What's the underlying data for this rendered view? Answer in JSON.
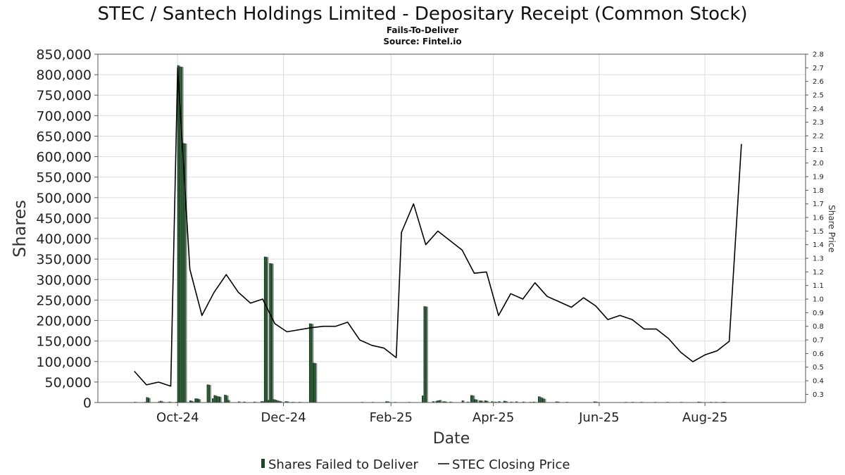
{
  "chart_data": {
    "type": "bar+line",
    "title": "STEC / Santech Holdings Limited - Depositary Receipt (Common Stock)",
    "subtitle_lines": [
      "Fails-To-Deliver",
      "Source: Fintel.io"
    ],
    "xlabel": "Date",
    "ylabel_left": "Shares",
    "ylabel_right": "Share Price",
    "x_range": [
      "2024-08-16",
      "2025-09-28"
    ],
    "x_ticks": [
      {
        "date": "2024-10-01",
        "label": "Oct-24"
      },
      {
        "date": "2024-12-01",
        "label": "Dec-24"
      },
      {
        "date": "2025-02-01",
        "label": "Feb-25"
      },
      {
        "date": "2025-04-01",
        "label": "Apr-25"
      },
      {
        "date": "2025-06-01",
        "label": "Jun-25"
      },
      {
        "date": "2025-08-01",
        "label": "Aug-25"
      }
    ],
    "y_left_range": [
      0,
      850000
    ],
    "y_left_ticks": [
      {
        "value": 0,
        "label": "0"
      },
      {
        "value": 50000,
        "label": "50,000"
      },
      {
        "value": 100000,
        "label": "100,000"
      },
      {
        "value": 150000,
        "label": "150,000"
      },
      {
        "value": 200000,
        "label": "200,000"
      },
      {
        "value": 250000,
        "label": "250,000"
      },
      {
        "value": 300000,
        "label": "300,000"
      },
      {
        "value": 350000,
        "label": "350,000"
      },
      {
        "value": 400000,
        "label": "400,000"
      },
      {
        "value": 450000,
        "label": "450,000"
      },
      {
        "value": 500000,
        "label": "500,000"
      },
      {
        "value": 550000,
        "label": "550,000"
      },
      {
        "value": 600000,
        "label": "600,000"
      },
      {
        "value": 650000,
        "label": "650,000"
      },
      {
        "value": 700000,
        "label": "700,000"
      },
      {
        "value": 750000,
        "label": "750,000"
      },
      {
        "value": 800000,
        "label": "800,000"
      },
      {
        "value": 850000,
        "label": "850,000"
      }
    ],
    "y_right_range": [
      0.24,
      2.8
    ],
    "y_right_ticks": [
      {
        "value": 0.3,
        "label": "0.3"
      },
      {
        "value": 0.4,
        "label": "0.4"
      },
      {
        "value": 0.5,
        "label": "0.5"
      },
      {
        "value": 0.6,
        "label": "0.6"
      },
      {
        "value": 0.7,
        "label": "0.7"
      },
      {
        "value": 0.8,
        "label": "0.8"
      },
      {
        "value": 0.9,
        "label": "0.9"
      },
      {
        "value": 1.0,
        "label": "1.0"
      },
      {
        "value": 1.1,
        "label": "1.1"
      },
      {
        "value": 1.2,
        "label": "1.2"
      },
      {
        "value": 1.3,
        "label": "1.3"
      },
      {
        "value": 1.4,
        "label": "1.4"
      },
      {
        "value": 1.5,
        "label": "1.5"
      },
      {
        "value": 1.6,
        "label": "1.6"
      },
      {
        "value": 1.7,
        "label": "1.7"
      },
      {
        "value": 1.8,
        "label": "1.8"
      },
      {
        "value": 1.9,
        "label": "1.9"
      },
      {
        "value": 2.0,
        "label": "2.0"
      },
      {
        "value": 2.1,
        "label": "2.1"
      },
      {
        "value": 2.2,
        "label": "2.2"
      },
      {
        "value": 2.3,
        "label": "2.3"
      },
      {
        "value": 2.4,
        "label": "2.4"
      },
      {
        "value": 2.5,
        "label": "2.5"
      },
      {
        "value": 2.6,
        "label": "2.6"
      },
      {
        "value": 2.7,
        "label": "2.7"
      },
      {
        "value": 2.8,
        "label": "2.8"
      }
    ],
    "grid": true,
    "legend_position": "bottom",
    "legend": [
      {
        "label": "Shares Failed to Deliver",
        "marker": "bar"
      },
      {
        "label": "STEC Closing Price",
        "marker": "line"
      }
    ],
    "colors": {
      "bar_dark": "#17471f",
      "bar_light": "#8c8c8c",
      "line": "#000000",
      "grid": "#dddddd",
      "axis": "#555555",
      "text": "#222222"
    },
    "series": [
      {
        "name": "Shares Failed to Deliver",
        "type": "bar",
        "axis": "left",
        "points": [
          {
            "date": "2024-09-06",
            "value": 1500
          },
          {
            "date": "2024-09-12",
            "value": 1200
          },
          {
            "date": "2024-09-13",
            "value": 13000
          },
          {
            "date": "2024-09-14",
            "value": 11000
          },
          {
            "date": "2024-09-20",
            "value": 2500
          },
          {
            "date": "2024-09-21",
            "value": 4000
          },
          {
            "date": "2024-09-22",
            "value": 2000
          },
          {
            "date": "2024-09-26",
            "value": 2000
          },
          {
            "date": "2024-09-30",
            "value": 1500
          },
          {
            "date": "2024-10-01",
            "value": 823000
          },
          {
            "date": "2024-10-02",
            "value": 820000
          },
          {
            "date": "2024-10-03",
            "value": 819000
          },
          {
            "date": "2024-10-04",
            "value": 633000
          },
          {
            "date": "2024-10-05",
            "value": 632000
          },
          {
            "date": "2024-10-08",
            "value": 5000
          },
          {
            "date": "2024-10-09",
            "value": 3500
          },
          {
            "date": "2024-10-11",
            "value": 10000
          },
          {
            "date": "2024-10-12",
            "value": 9500
          },
          {
            "date": "2024-10-13",
            "value": 8000
          },
          {
            "date": "2024-10-18",
            "value": 44000
          },
          {
            "date": "2024-10-19",
            "value": 43000
          },
          {
            "date": "2024-10-21",
            "value": 10000
          },
          {
            "date": "2024-10-22",
            "value": 18000
          },
          {
            "date": "2024-10-23",
            "value": 16000
          },
          {
            "date": "2024-10-24",
            "value": 15000
          },
          {
            "date": "2024-10-25",
            "value": 14000
          },
          {
            "date": "2024-10-28",
            "value": 19000
          },
          {
            "date": "2024-10-29",
            "value": 17000
          },
          {
            "date": "2024-10-30",
            "value": 6000
          },
          {
            "date": "2024-11-05",
            "value": 2500
          },
          {
            "date": "2024-11-08",
            "value": 2000
          },
          {
            "date": "2024-11-14",
            "value": 2000
          },
          {
            "date": "2024-11-18",
            "value": 3000
          },
          {
            "date": "2024-11-19",
            "value": 3000
          },
          {
            "date": "2024-11-20",
            "value": 356000
          },
          {
            "date": "2024-11-21",
            "value": 355000
          },
          {
            "date": "2024-11-22",
            "value": 6000
          },
          {
            "date": "2024-11-23",
            "value": 340000
          },
          {
            "date": "2024-11-24",
            "value": 339000
          },
          {
            "date": "2024-11-25",
            "value": 8000
          },
          {
            "date": "2024-11-26",
            "value": 7000
          },
          {
            "date": "2024-11-27",
            "value": 5000
          },
          {
            "date": "2024-11-28",
            "value": 4000
          },
          {
            "date": "2024-11-29",
            "value": 3000
          },
          {
            "date": "2024-12-02",
            "value": 3000
          },
          {
            "date": "2024-12-03",
            "value": 2500
          },
          {
            "date": "2024-12-06",
            "value": 1500
          },
          {
            "date": "2024-12-10",
            "value": 1500
          },
          {
            "date": "2024-12-16",
            "value": 193000
          },
          {
            "date": "2024-12-17",
            "value": 192000
          },
          {
            "date": "2024-12-18",
            "value": 97000
          },
          {
            "date": "2024-12-19",
            "value": 96000
          },
          {
            "date": "2025-01-15",
            "value": 1000
          },
          {
            "date": "2025-01-21",
            "value": 1000
          },
          {
            "date": "2025-01-29",
            "value": 3000
          },
          {
            "date": "2025-01-30",
            "value": 2500
          },
          {
            "date": "2025-02-03",
            "value": 1000
          },
          {
            "date": "2025-02-11",
            "value": 1000
          },
          {
            "date": "2025-02-19",
            "value": 17000
          },
          {
            "date": "2025-02-20",
            "value": 235000
          },
          {
            "date": "2025-02-21",
            "value": 234000
          },
          {
            "date": "2025-02-25",
            "value": 3000
          },
          {
            "date": "2025-02-27",
            "value": 4000
          },
          {
            "date": "2025-02-28",
            "value": 5000
          },
          {
            "date": "2025-03-01",
            "value": 6000
          },
          {
            "date": "2025-03-03",
            "value": 3000
          },
          {
            "date": "2025-03-04",
            "value": 2500
          },
          {
            "date": "2025-03-07",
            "value": 2000
          },
          {
            "date": "2025-03-14",
            "value": 5000
          },
          {
            "date": "2025-03-17",
            "value": 2000
          },
          {
            "date": "2025-03-19",
            "value": 18000
          },
          {
            "date": "2025-03-20",
            "value": 17000
          },
          {
            "date": "2025-03-21",
            "value": 8000
          },
          {
            "date": "2025-03-22",
            "value": 7000
          },
          {
            "date": "2025-03-24",
            "value": 5000
          },
          {
            "date": "2025-03-25",
            "value": 4000
          },
          {
            "date": "2025-03-27",
            "value": 5000
          },
          {
            "date": "2025-03-28",
            "value": 4000
          },
          {
            "date": "2025-03-31",
            "value": 3000
          },
          {
            "date": "2025-04-02",
            "value": 2000
          },
          {
            "date": "2025-04-04",
            "value": 3000
          },
          {
            "date": "2025-04-07",
            "value": 4000
          },
          {
            "date": "2025-04-08",
            "value": 3000
          },
          {
            "date": "2025-04-11",
            "value": 2000
          },
          {
            "date": "2025-04-14",
            "value": 2500
          },
          {
            "date": "2025-04-18",
            "value": 2000
          },
          {
            "date": "2025-04-22",
            "value": 1500
          },
          {
            "date": "2025-04-24",
            "value": 2000
          },
          {
            "date": "2025-04-27",
            "value": 15000
          },
          {
            "date": "2025-04-28",
            "value": 13000
          },
          {
            "date": "2025-04-29",
            "value": 11000
          },
          {
            "date": "2025-04-30",
            "value": 9000
          },
          {
            "date": "2025-05-07",
            "value": 2500
          },
          {
            "date": "2025-05-08",
            "value": 2000
          },
          {
            "date": "2025-05-13",
            "value": 1500
          },
          {
            "date": "2025-05-29",
            "value": 2500
          },
          {
            "date": "2025-05-30",
            "value": 2000
          },
          {
            "date": "2025-06-16",
            "value": 1000
          },
          {
            "date": "2025-06-20",
            "value": 1500
          },
          {
            "date": "2025-06-25",
            "value": 1500
          },
          {
            "date": "2025-07-03",
            "value": 1000
          },
          {
            "date": "2025-07-10",
            "value": 1000
          },
          {
            "date": "2025-07-18",
            "value": 1000
          },
          {
            "date": "2025-07-28",
            "value": 2000
          },
          {
            "date": "2025-07-29",
            "value": 1500
          },
          {
            "date": "2025-08-04",
            "value": 1000
          },
          {
            "date": "2025-08-07",
            "value": 1000
          },
          {
            "date": "2025-08-11",
            "value": 1500
          },
          {
            "date": "2025-08-12",
            "value": 1000
          }
        ]
      },
      {
        "name": "STEC Closing Price",
        "type": "line",
        "axis": "right",
        "points": [
          {
            "date": "2024-09-06",
            "value": 0.47
          },
          {
            "date": "2024-09-13",
            "value": 0.37
          },
          {
            "date": "2024-09-20",
            "value": 0.39
          },
          {
            "date": "2024-09-27",
            "value": 0.36
          },
          {
            "date": "2024-10-01",
            "value": 2.7
          },
          {
            "date": "2024-10-08",
            "value": 1.22
          },
          {
            "date": "2024-10-15",
            "value": 0.88
          },
          {
            "date": "2024-10-22",
            "value": 1.05
          },
          {
            "date": "2024-10-29",
            "value": 1.18
          },
          {
            "date": "2024-11-05",
            "value": 1.05
          },
          {
            "date": "2024-11-12",
            "value": 0.97
          },
          {
            "date": "2024-11-19",
            "value": 1.0
          },
          {
            "date": "2024-11-26",
            "value": 0.82
          },
          {
            "date": "2024-12-03",
            "value": 0.76
          },
          {
            "date": "2024-12-17",
            "value": 0.79
          },
          {
            "date": "2024-12-24",
            "value": 0.8
          },
          {
            "date": "2024-12-31",
            "value": 0.8
          },
          {
            "date": "2025-01-07",
            "value": 0.83
          },
          {
            "date": "2025-01-14",
            "value": 0.7
          },
          {
            "date": "2025-01-21",
            "value": 0.66
          },
          {
            "date": "2025-01-28",
            "value": 0.64
          },
          {
            "date": "2025-02-04",
            "value": 0.57
          },
          {
            "date": "2025-02-07",
            "value": 1.49
          },
          {
            "date": "2025-02-14",
            "value": 1.7
          },
          {
            "date": "2025-02-21",
            "value": 1.4
          },
          {
            "date": "2025-02-28",
            "value": 1.5
          },
          {
            "date": "2025-03-07",
            "value": 1.43
          },
          {
            "date": "2025-03-14",
            "value": 1.36
          },
          {
            "date": "2025-03-21",
            "value": 1.19
          },
          {
            "date": "2025-03-28",
            "value": 1.2
          },
          {
            "date": "2025-04-04",
            "value": 0.88
          },
          {
            "date": "2025-04-11",
            "value": 1.04
          },
          {
            "date": "2025-04-18",
            "value": 1.0
          },
          {
            "date": "2025-04-25",
            "value": 1.12
          },
          {
            "date": "2025-05-02",
            "value": 1.02
          },
          {
            "date": "2025-05-09",
            "value": 0.98
          },
          {
            "date": "2025-05-16",
            "value": 0.94
          },
          {
            "date": "2025-05-23",
            "value": 1.01
          },
          {
            "date": "2025-05-30",
            "value": 0.95
          },
          {
            "date": "2025-06-06",
            "value": 0.85
          },
          {
            "date": "2025-06-13",
            "value": 0.88
          },
          {
            "date": "2025-06-20",
            "value": 0.85
          },
          {
            "date": "2025-06-27",
            "value": 0.78
          },
          {
            "date": "2025-07-04",
            "value": 0.78
          },
          {
            "date": "2025-07-11",
            "value": 0.71
          },
          {
            "date": "2025-07-18",
            "value": 0.61
          },
          {
            "date": "2025-07-25",
            "value": 0.54
          },
          {
            "date": "2025-08-01",
            "value": 0.59
          },
          {
            "date": "2025-08-08",
            "value": 0.62
          },
          {
            "date": "2025-08-15",
            "value": 0.69
          },
          {
            "date": "2025-08-22",
            "value": 2.14
          }
        ]
      }
    ]
  }
}
